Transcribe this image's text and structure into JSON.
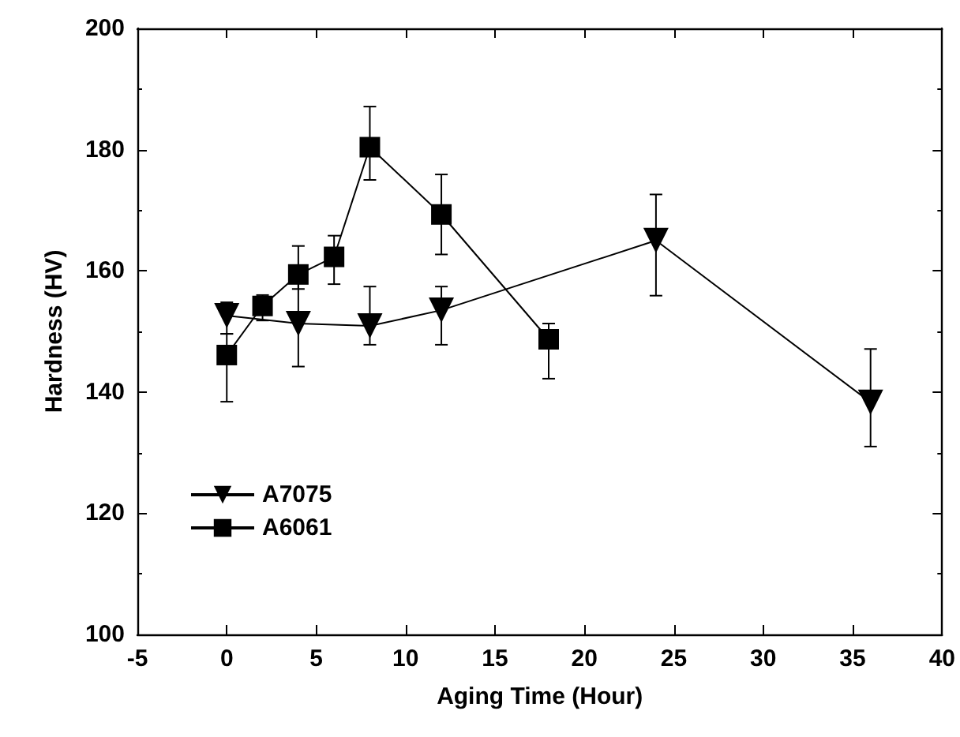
{
  "chart_data": {
    "type": "line",
    "xlabel": "Aging Time (Hour)",
    "ylabel": "Hardness (HV)",
    "xlim": [
      -5,
      40
    ],
    "xticks": [
      -5,
      0,
      5,
      10,
      15,
      20,
      25,
      30,
      35,
      40
    ],
    "ylim": [
      100,
      200
    ],
    "yticks": [
      100,
      120,
      140,
      160,
      180,
      200
    ],
    "grid": false,
    "legend": "bottom left",
    "series": [
      {
        "name": "A7075",
        "color": "#000000",
        "marker": "triangle",
        "x": [
          0,
          4,
          8,
          12,
          24,
          36
        ],
        "values": [
          152.6,
          151.3,
          150.9,
          153.5,
          165,
          138.3
        ],
        "errors": [
          [
            149.6,
            154.8
          ],
          [
            144.2,
            158.4
          ],
          [
            147.8,
            157.4
          ],
          [
            147.8,
            157.4
          ],
          [
            155.9,
            172.6
          ],
          [
            131,
            147.1
          ]
        ]
      },
      {
        "name": "A6061",
        "color": "#000000",
        "marker": "square",
        "x": [
          0,
          2,
          4,
          6,
          8,
          12,
          18
        ],
        "values": [
          146.1,
          154.2,
          159.4,
          162.3,
          180.4,
          169.3,
          148.7
        ],
        "errors": [
          [
            138.4,
            149.6
          ],
          [
            151.8,
            156
          ],
          [
            157,
            164.1
          ],
          [
            157.8,
            165.8
          ],
          [
            175,
            187.1
          ],
          [
            162.7,
            175.9
          ],
          [
            142.2,
            151.3
          ]
        ]
      }
    ]
  }
}
